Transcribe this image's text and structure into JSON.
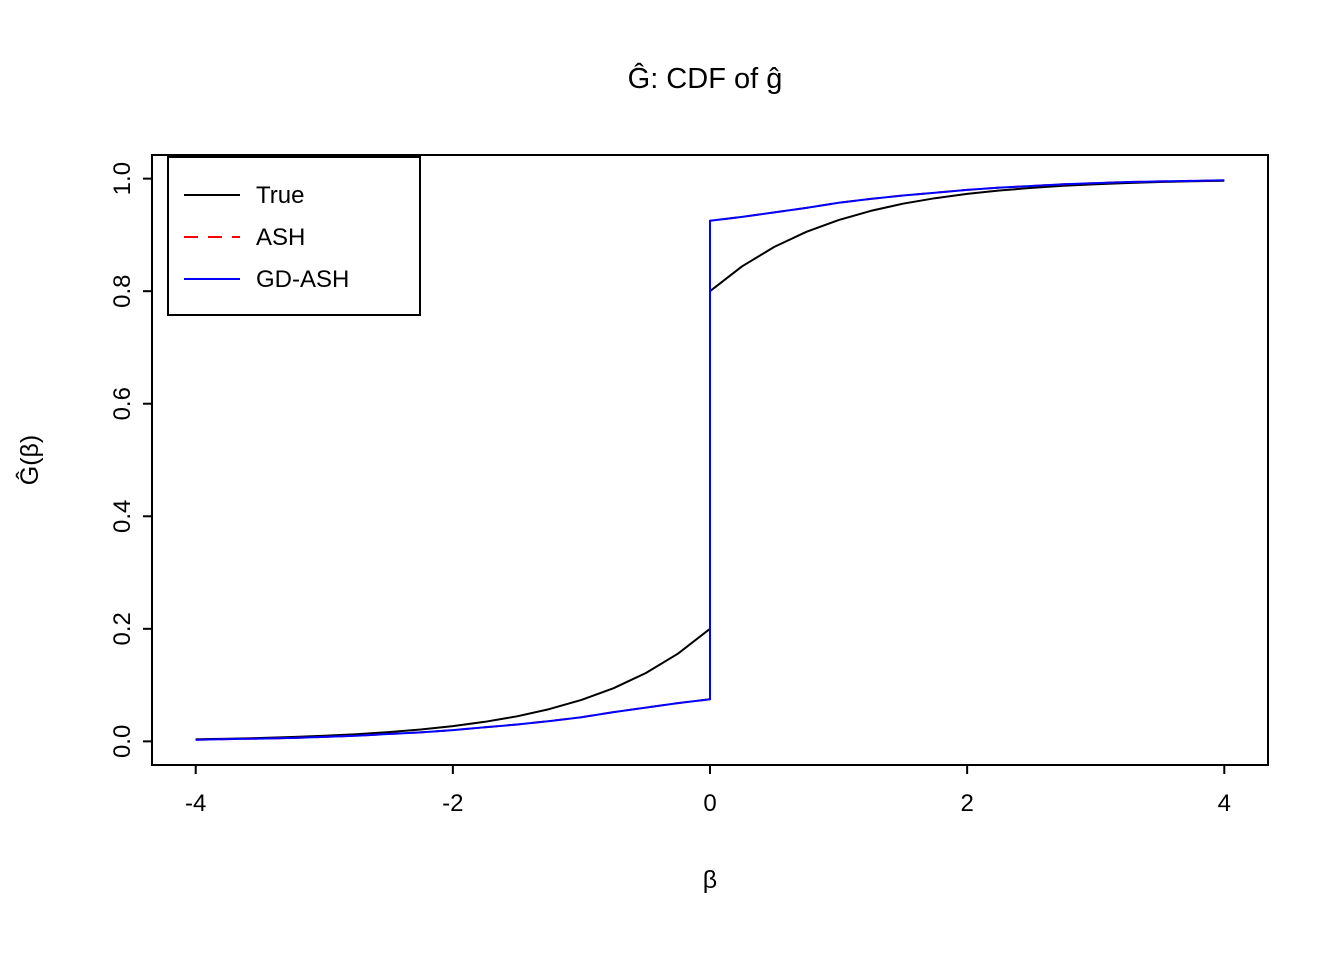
{
  "chart_data": {
    "type": "line",
    "title": "Ĝ: CDF of ĝ",
    "xlabel": "β",
    "ylabel": "Ĝ(β)",
    "grid": false,
    "x_range": [
      -4.34,
      4.34
    ],
    "y_range": [
      -0.042,
      1.042
    ],
    "x_ticks": [
      {
        "v": -4,
        "label": "-4"
      },
      {
        "v": -2,
        "label": "-2"
      },
      {
        "v": 0,
        "label": "0"
      },
      {
        "v": 2,
        "label": "2"
      },
      {
        "v": 4,
        "label": "4"
      }
    ],
    "y_ticks": [
      {
        "v": 0.0,
        "label": "0.0"
      },
      {
        "v": 0.2,
        "label": "0.2"
      },
      {
        "v": 0.4,
        "label": "0.4"
      },
      {
        "v": 0.6,
        "label": "0.6"
      },
      {
        "v": 0.8,
        "label": "0.8"
      },
      {
        "v": 1.0,
        "label": "1.0"
      }
    ],
    "legend": {
      "position": "top-left",
      "entries": [
        {
          "label": "True",
          "color": "#000000",
          "style": "solid"
        },
        {
          "label": "ASH",
          "color": "#FF0000",
          "style": "dashed"
        },
        {
          "label": "GD-ASH",
          "color": "#0000FF",
          "style": "solid"
        }
      ]
    },
    "series": [
      {
        "name": "True",
        "color": "#000000",
        "style": "solid",
        "points": [
          [
            -4,
            0.0037
          ],
          [
            -3.75,
            0.0047
          ],
          [
            -3.5,
            0.006
          ],
          [
            -3.25,
            0.0078
          ],
          [
            -3,
            0.01
          ],
          [
            -2.75,
            0.0128
          ],
          [
            -2.5,
            0.0164
          ],
          [
            -2.25,
            0.0211
          ],
          [
            -2,
            0.0271
          ],
          [
            -1.75,
            0.0348
          ],
          [
            -1.5,
            0.0446
          ],
          [
            -1.25,
            0.0573
          ],
          [
            -1,
            0.0736
          ],
          [
            -0.75,
            0.0945
          ],
          [
            -0.5,
            0.1213
          ],
          [
            -0.25,
            0.1558
          ],
          [
            0,
            0.2
          ],
          [
            0,
            0.8
          ],
          [
            0.25,
            0.8442
          ],
          [
            0.5,
            0.8787
          ],
          [
            0.75,
            0.9055
          ],
          [
            1,
            0.9264
          ],
          [
            1.25,
            0.9427
          ],
          [
            1.5,
            0.9554
          ],
          [
            1.75,
            0.9652
          ],
          [
            2,
            0.9729
          ],
          [
            2.25,
            0.9789
          ],
          [
            2.5,
            0.9836
          ],
          [
            2.75,
            0.9872
          ],
          [
            3,
            0.99
          ],
          [
            3.25,
            0.9922
          ],
          [
            3.5,
            0.994
          ],
          [
            3.75,
            0.9953
          ],
          [
            4,
            0.9963
          ]
        ]
      },
      {
        "name": "ASH",
        "color": "#FF0000",
        "style": "dashed",
        "points": [
          [
            -4,
            0.003
          ],
          [
            -3.75,
            0.004
          ],
          [
            -3.5,
            0.005
          ],
          [
            -3.25,
            0.006
          ],
          [
            -3,
            0.008
          ],
          [
            -2.75,
            0.01
          ],
          [
            -2.5,
            0.013
          ],
          [
            -2.25,
            0.016
          ],
          [
            -2,
            0.02
          ],
          [
            -1.75,
            0.025
          ],
          [
            -1.5,
            0.03
          ],
          [
            -1.25,
            0.036
          ],
          [
            -1,
            0.043
          ],
          [
            -0.75,
            0.052
          ],
          [
            -0.5,
            0.06
          ],
          [
            -0.25,
            0.068
          ],
          [
            0,
            0.075
          ],
          [
            0,
            0.925
          ],
          [
            0.25,
            0.932
          ],
          [
            0.5,
            0.94
          ],
          [
            0.75,
            0.948
          ],
          [
            1,
            0.957
          ],
          [
            1.25,
            0.964
          ],
          [
            1.5,
            0.97
          ],
          [
            1.75,
            0.975
          ],
          [
            2,
            0.98
          ],
          [
            2.25,
            0.984
          ],
          [
            2.5,
            0.987
          ],
          [
            2.75,
            0.99
          ],
          [
            3,
            0.992
          ],
          [
            3.25,
            0.994
          ],
          [
            3.5,
            0.995
          ],
          [
            3.75,
            0.996
          ],
          [
            4,
            0.997
          ]
        ]
      },
      {
        "name": "GD-ASH",
        "color": "#0000FF",
        "style": "solid",
        "points": [
          [
            -4,
            0.003
          ],
          [
            -3.75,
            0.004
          ],
          [
            -3.5,
            0.005
          ],
          [
            -3.25,
            0.006
          ],
          [
            -3,
            0.008
          ],
          [
            -2.75,
            0.01
          ],
          [
            -2.5,
            0.013
          ],
          [
            -2.25,
            0.016
          ],
          [
            -2,
            0.02
          ],
          [
            -1.75,
            0.025
          ],
          [
            -1.5,
            0.03
          ],
          [
            -1.25,
            0.036
          ],
          [
            -1,
            0.043
          ],
          [
            -0.75,
            0.052
          ],
          [
            -0.5,
            0.06
          ],
          [
            -0.25,
            0.068
          ],
          [
            0,
            0.075
          ],
          [
            0,
            0.925
          ],
          [
            0.25,
            0.932
          ],
          [
            0.5,
            0.94
          ],
          [
            0.75,
            0.948
          ],
          [
            1,
            0.957
          ],
          [
            1.25,
            0.964
          ],
          [
            1.5,
            0.97
          ],
          [
            1.75,
            0.975
          ],
          [
            2,
            0.98
          ],
          [
            2.25,
            0.984
          ],
          [
            2.5,
            0.987
          ],
          [
            2.75,
            0.99
          ],
          [
            3,
            0.992
          ],
          [
            3.25,
            0.994
          ],
          [
            3.5,
            0.995
          ],
          [
            3.75,
            0.996
          ],
          [
            4,
            0.997
          ]
        ]
      }
    ]
  }
}
